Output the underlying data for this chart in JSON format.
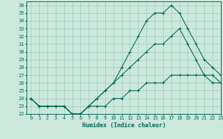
{
  "xlabel": "Humidex (Indice chaleur)",
  "bg_color": "#cce8dc",
  "grid_color": "#99ccbb",
  "line_color": "#006655",
  "xlim": [
    -0.5,
    23
  ],
  "ylim": [
    22,
    36.5
  ],
  "xticks": [
    0,
    1,
    2,
    3,
    4,
    5,
    6,
    7,
    8,
    9,
    10,
    11,
    12,
    13,
    14,
    15,
    16,
    17,
    18,
    19,
    20,
    21,
    22,
    23
  ],
  "yticks": [
    22,
    23,
    24,
    25,
    26,
    27,
    28,
    29,
    30,
    31,
    32,
    33,
    34,
    35,
    36
  ],
  "curve1_x": [
    0,
    1,
    2,
    3,
    4,
    5,
    6,
    7,
    8,
    9,
    10,
    11,
    12,
    13,
    14,
    15,
    16,
    17,
    18,
    19,
    20,
    21,
    22,
    23
  ],
  "curve1_y": [
    24,
    23,
    23,
    23,
    23,
    22,
    22,
    23,
    24,
    25,
    26,
    28,
    30,
    32,
    34,
    35,
    35,
    36,
    35,
    33,
    31,
    29,
    28,
    27
  ],
  "curve2_x": [
    0,
    1,
    2,
    3,
    4,
    5,
    6,
    7,
    8,
    9,
    10,
    11,
    12,
    13,
    14,
    15,
    16,
    17,
    18,
    19,
    20,
    21,
    22,
    23
  ],
  "curve2_y": [
    24,
    23,
    23,
    23,
    23,
    22,
    22,
    23,
    24,
    25,
    26,
    27,
    28,
    29,
    30,
    31,
    31,
    32,
    33,
    31,
    29,
    27,
    26,
    26
  ],
  "curve3_x": [
    0,
    1,
    2,
    3,
    4,
    5,
    6,
    7,
    8,
    9,
    10,
    11,
    12,
    13,
    14,
    15,
    16,
    17,
    18,
    19,
    20,
    21,
    22,
    23
  ],
  "curve3_y": [
    24,
    23,
    23,
    23,
    23,
    22,
    22,
    23,
    23,
    23,
    24,
    24,
    25,
    25,
    26,
    26,
    26,
    27,
    27,
    27,
    27,
    27,
    27,
    26
  ]
}
